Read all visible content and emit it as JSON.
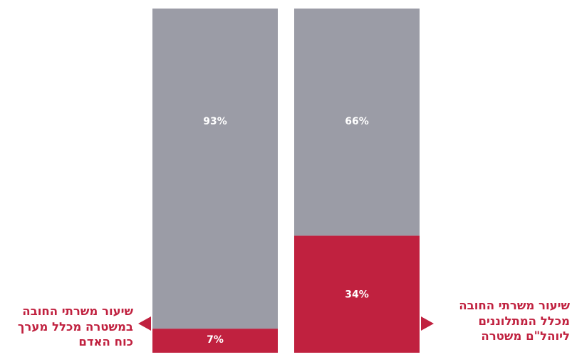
{
  "chart_data": {
    "type": "bar",
    "stacked": true,
    "percent": true,
    "title": "",
    "xlabel": "",
    "ylabel": "",
    "ylim": [
      0,
      100
    ],
    "grid": false,
    "bars": [
      {
        "category_lines": [
          "שיעור משרתי החובה",
          "במשטרה מכלל מערך",
          "כוח האדם"
        ],
        "segments": [
          {
            "value": 7,
            "label": "7%",
            "color": "#c0213f"
          },
          {
            "value": 93,
            "label": "93%",
            "color": "#9b9ca6"
          }
        ]
      },
      {
        "category_lines": [
          "שיעור משרתי החובה",
          "מכלל המתלוננים",
          "ליוהל\"ם משטרה"
        ],
        "segments": [
          {
            "value": 34,
            "label": "34%",
            "color": "#c0213f"
          },
          {
            "value": 66,
            "label": "66%",
            "color": "#9b9ca6"
          }
        ]
      }
    ]
  },
  "colors": {
    "accent": "#c0213f",
    "secondary": "#9b9ca6",
    "value_text": "#ffffff"
  },
  "icons": {
    "left_pointer": "triangle-left-icon",
    "right_pointer": "triangle-right-icon"
  }
}
